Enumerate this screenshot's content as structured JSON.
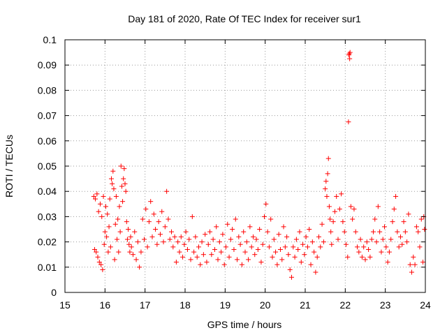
{
  "chart_data": {
    "type": "scatter",
    "title": "Day 181 of 2020, Rate Of TEC Index for receiver sur1",
    "xlabel": "GPS time / hours",
    "ylabel": "ROTI / TECUs",
    "xlim": [
      15,
      24
    ],
    "ylim": [
      0,
      0.1
    ],
    "xticks": [
      "15",
      "16",
      "17",
      "18",
      "19",
      "20",
      "21",
      "22",
      "23",
      "24"
    ],
    "yticks": [
      "0",
      "0.01",
      "0.02",
      "0.03",
      "0.04",
      "0.05",
      "0.06",
      "0.07",
      "0.08",
      "0.09",
      "0.1"
    ],
    "grid": true,
    "marker": "plus",
    "color": "#ff0000",
    "series": [
      {
        "name": "sur1",
        "points": [
          [
            15.72,
            0.038
          ],
          [
            15.74,
            0.017
          ],
          [
            15.76,
            0.037
          ],
          [
            15.78,
            0.016
          ],
          [
            15.8,
            0.039
          ],
          [
            15.82,
            0.014
          ],
          [
            15.84,
            0.032
          ],
          [
            15.86,
            0.012
          ],
          [
            15.88,
            0.035
          ],
          [
            15.9,
            0.011
          ],
          [
            15.92,
            0.03
          ],
          [
            15.94,
            0.009
          ],
          [
            15.96,
            0.038
          ],
          [
            15.98,
            0.019
          ],
          [
            16.0,
            0.024
          ],
          [
            16.02,
            0.034
          ],
          [
            16.04,
            0.022
          ],
          [
            16.06,
            0.031
          ],
          [
            16.08,
            0.016
          ],
          [
            16.1,
            0.026
          ],
          [
            16.12,
            0.037
          ],
          [
            16.14,
            0.018
          ],
          [
            16.16,
            0.045
          ],
          [
            16.18,
            0.043
          ],
          [
            16.2,
            0.048
          ],
          [
            16.22,
            0.041
          ],
          [
            16.24,
            0.013
          ],
          [
            16.26,
            0.027
          ],
          [
            16.28,
            0.038
          ],
          [
            16.3,
            0.021
          ],
          [
            16.32,
            0.029
          ],
          [
            16.34,
            0.016
          ],
          [
            16.36,
            0.034
          ],
          [
            16.38,
            0.024
          ],
          [
            16.4,
            0.05
          ],
          [
            16.42,
            0.042
          ],
          [
            16.44,
            0.036
          ],
          [
            16.46,
            0.045
          ],
          [
            16.48,
            0.049
          ],
          [
            16.5,
            0.043
          ],
          [
            16.52,
            0.04
          ],
          [
            16.54,
            0.028
          ],
          [
            16.56,
            0.021
          ],
          [
            16.58,
            0.025
          ],
          [
            16.6,
            0.019
          ],
          [
            16.62,
            0.016
          ],
          [
            16.64,
            0.022
          ],
          [
            16.66,
            0.018
          ],
          [
            16.7,
            0.015
          ],
          [
            16.74,
            0.024
          ],
          [
            16.78,
            0.013
          ],
          [
            16.82,
            0.02
          ],
          [
            16.86,
            0.01
          ],
          [
            16.9,
            0.016
          ],
          [
            16.94,
            0.029
          ],
          [
            16.98,
            0.021
          ],
          [
            17.02,
            0.033
          ],
          [
            17.06,
            0.018
          ],
          [
            17.1,
            0.028
          ],
          [
            17.14,
            0.036
          ],
          [
            17.18,
            0.022
          ],
          [
            17.22,
            0.031
          ],
          [
            17.26,
            0.025
          ],
          [
            17.3,
            0.019
          ],
          [
            17.34,
            0.028
          ],
          [
            17.38,
            0.023
          ],
          [
            17.42,
            0.032
          ],
          [
            17.46,
            0.02
          ],
          [
            17.5,
            0.026
          ],
          [
            17.54,
            0.04
          ],
          [
            17.58,
            0.029
          ],
          [
            17.62,
            0.021
          ],
          [
            17.66,
            0.024
          ],
          [
            17.7,
            0.018
          ],
          [
            17.74,
            0.022
          ],
          [
            17.78,
            0.012
          ],
          [
            17.82,
            0.02
          ],
          [
            17.86,
            0.016
          ],
          [
            17.9,
            0.022
          ],
          [
            17.94,
            0.014
          ],
          [
            17.98,
            0.019
          ],
          [
            18.02,
            0.024
          ],
          [
            18.06,
            0.017
          ],
          [
            18.1,
            0.021
          ],
          [
            18.14,
            0.013
          ],
          [
            18.18,
            0.03
          ],
          [
            18.22,
            0.016
          ],
          [
            18.26,
            0.022
          ],
          [
            18.3,
            0.014
          ],
          [
            18.34,
            0.018
          ],
          [
            18.38,
            0.011
          ],
          [
            18.42,
            0.02
          ],
          [
            18.46,
            0.015
          ],
          [
            18.5,
            0.023
          ],
          [
            18.54,
            0.012
          ],
          [
            18.58,
            0.019
          ],
          [
            18.62,
            0.024
          ],
          [
            18.66,
            0.015
          ],
          [
            18.7,
            0.021
          ],
          [
            18.74,
            0.017
          ],
          [
            18.78,
            0.026
          ],
          [
            18.82,
            0.013
          ],
          [
            18.86,
            0.02
          ],
          [
            18.9,
            0.016
          ],
          [
            18.94,
            0.023
          ],
          [
            18.98,
            0.011
          ],
          [
            19.02,
            0.018
          ],
          [
            19.06,
            0.027
          ],
          [
            19.1,
            0.014
          ],
          [
            19.14,
            0.021
          ],
          [
            19.18,
            0.025
          ],
          [
            19.22,
            0.017
          ],
          [
            19.26,
            0.029
          ],
          [
            19.3,
            0.013
          ],
          [
            19.34,
            0.022
          ],
          [
            19.38,
            0.019
          ],
          [
            19.42,
            0.011
          ],
          [
            19.46,
            0.024
          ],
          [
            19.5,
            0.016
          ],
          [
            19.54,
            0.02
          ],
          [
            19.58,
            0.013
          ],
          [
            19.62,
            0.026
          ],
          [
            19.66,
            0.018
          ],
          [
            19.7,
            0.022
          ],
          [
            19.74,
            0.015
          ],
          [
            19.78,
            0.021
          ],
          [
            19.82,
            0.017
          ],
          [
            19.86,
            0.025
          ],
          [
            19.9,
            0.012
          ],
          [
            19.94,
            0.019
          ],
          [
            19.98,
            0.03
          ],
          [
            20.02,
            0.035
          ],
          [
            20.06,
            0.024
          ],
          [
            20.1,
            0.018
          ],
          [
            20.14,
            0.029
          ],
          [
            20.18,
            0.014
          ],
          [
            20.22,
            0.021
          ],
          [
            20.26,
            0.016
          ],
          [
            20.3,
            0.011
          ],
          [
            20.34,
            0.023
          ],
          [
            20.38,
            0.017
          ],
          [
            20.42,
            0.013
          ],
          [
            20.46,
            0.026
          ],
          [
            20.5,
            0.018
          ],
          [
            20.54,
            0.022
          ],
          [
            20.58,
            0.015
          ],
          [
            20.62,
            0.009
          ],
          [
            20.66,
            0.006
          ],
          [
            20.7,
            0.018
          ],
          [
            20.74,
            0.014
          ],
          [
            20.78,
            0.021
          ],
          [
            20.82,
            0.017
          ],
          [
            20.86,
            0.024
          ],
          [
            20.9,
            0.012
          ],
          [
            20.94,
            0.019
          ],
          [
            20.98,
            0.015
          ],
          [
            21.02,
            0.022
          ],
          [
            21.06,
            0.018
          ],
          [
            21.1,
            0.025
          ],
          [
            21.14,
            0.011
          ],
          [
            21.18,
            0.02
          ],
          [
            21.22,
            0.016
          ],
          [
            21.26,
            0.008
          ],
          [
            21.3,
            0.014
          ],
          [
            21.34,
            0.022
          ],
          [
            21.38,
            0.018
          ],
          [
            21.42,
            0.027
          ],
          [
            21.46,
            0.02
          ],
          [
            21.5,
            0.041
          ],
          [
            21.52,
            0.044
          ],
          [
            21.54,
            0.038
          ],
          [
            21.56,
            0.047
          ],
          [
            21.58,
            0.053
          ],
          [
            21.6,
            0.034
          ],
          [
            21.62,
            0.029
          ],
          [
            21.64,
            0.024
          ],
          [
            21.66,
            0.019
          ],
          [
            21.7,
            0.028
          ],
          [
            21.74,
            0.032
          ],
          [
            21.78,
            0.038
          ],
          [
            21.82,
            0.021
          ],
          [
            21.86,
            0.033
          ],
          [
            21.9,
            0.039
          ],
          [
            21.94,
            0.028
          ],
          [
            21.98,
            0.024
          ],
          [
            22.02,
            0.019
          ],
          [
            22.06,
            0.014
          ],
          [
            22.08,
            0.0675
          ],
          [
            22.09,
            0.094
          ],
          [
            22.1,
            0.0945
          ],
          [
            22.11,
            0.0925
          ],
          [
            22.12,
            0.095
          ],
          [
            22.14,
            0.034
          ],
          [
            22.18,
            0.029
          ],
          [
            22.22,
            0.033
          ],
          [
            22.26,
            0.024
          ],
          [
            22.3,
            0.018
          ],
          [
            22.34,
            0.016
          ],
          [
            22.38,
            0.021
          ],
          [
            22.42,
            0.014
          ],
          [
            22.46,
            0.018
          ],
          [
            22.5,
            0.013
          ],
          [
            22.54,
            0.02
          ],
          [
            22.58,
            0.017
          ],
          [
            22.62,
            0.014
          ],
          [
            22.66,
            0.021
          ],
          [
            22.7,
            0.024
          ],
          [
            22.74,
            0.029
          ],
          [
            22.78,
            0.02
          ],
          [
            22.82,
            0.034
          ],
          [
            22.86,
            0.024
          ],
          [
            22.9,
            0.016
          ],
          [
            22.94,
            0.021
          ],
          [
            22.98,
            0.026
          ],
          [
            23.02,
            0.018
          ],
          [
            23.06,
            0.012
          ],
          [
            23.1,
            0.016
          ],
          [
            23.14,
            0.021
          ],
          [
            23.18,
            0.028
          ],
          [
            23.22,
            0.033
          ],
          [
            23.26,
            0.038
          ],
          [
            23.3,
            0.024
          ],
          [
            23.34,
            0.018
          ],
          [
            23.38,
            0.022
          ],
          [
            23.42,
            0.019
          ],
          [
            23.46,
            0.028
          ],
          [
            23.5,
            0.024
          ],
          [
            23.54,
            0.02
          ],
          [
            23.58,
            0.031
          ],
          [
            23.62,
            0.011
          ],
          [
            23.66,
            0.008
          ],
          [
            23.7,
            0.014
          ],
          [
            23.74,
            0.011
          ],
          [
            23.78,
            0.026
          ],
          [
            23.82,
            0.024
          ],
          [
            23.86,
            0.018
          ],
          [
            23.9,
            0.029
          ],
          [
            23.94,
            0.012
          ],
          [
            23.96,
            0.03
          ],
          [
            23.98,
            0.025
          ]
        ]
      }
    ]
  }
}
